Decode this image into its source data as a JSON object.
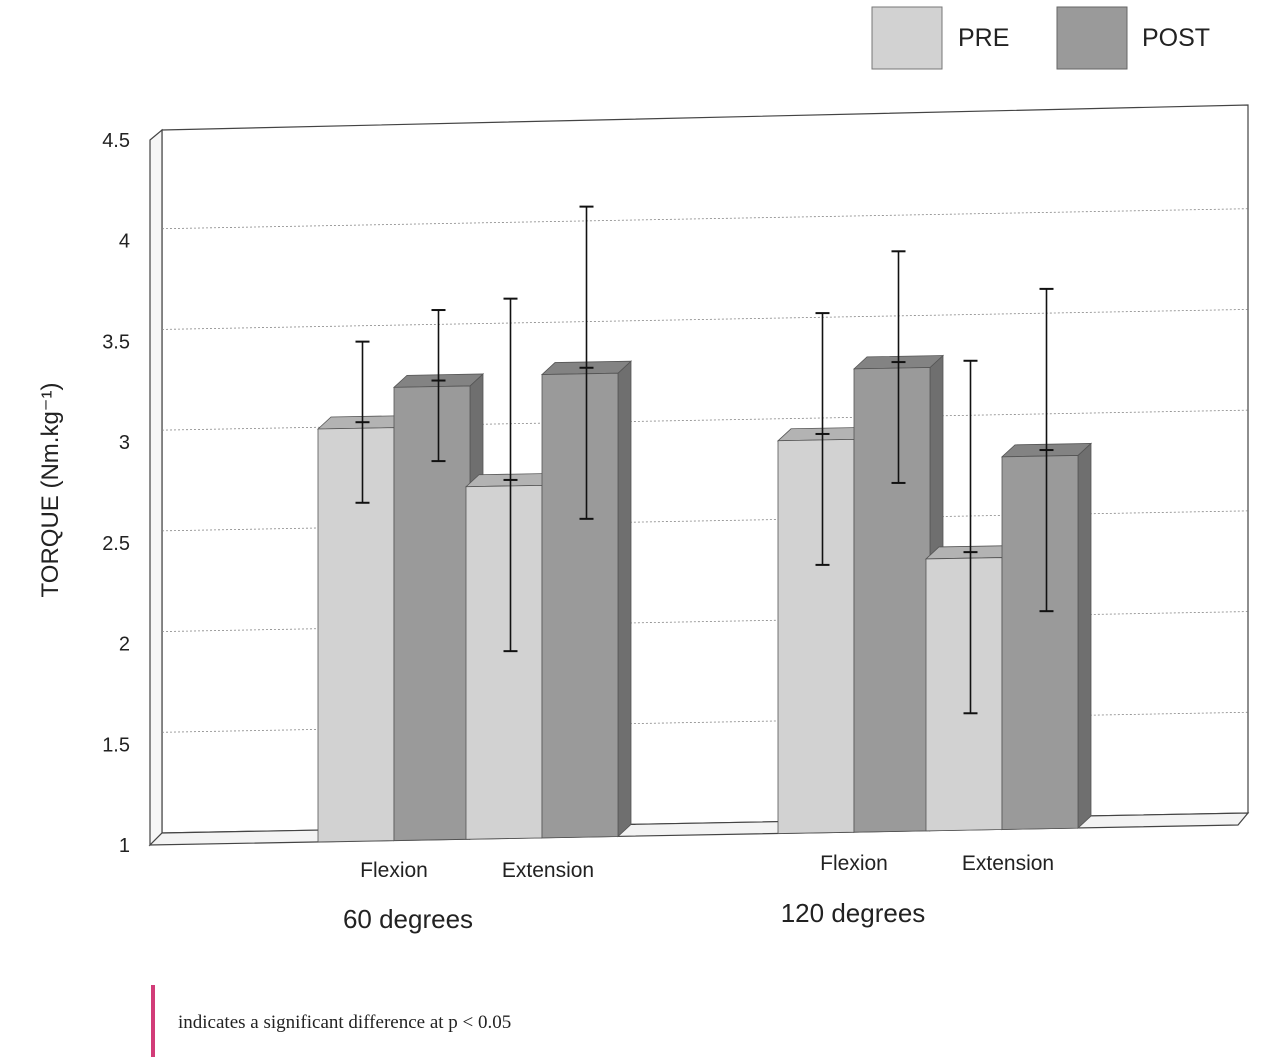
{
  "chart_data": {
    "type": "bar",
    "ylabel": "TORQUE (Nm.kg⁻¹)",
    "ylim": [
      1,
      4.5
    ],
    "yticks": [
      "1",
      "1.5",
      "2",
      "2.5",
      "3",
      "3.5",
      "4",
      "4.5"
    ],
    "grid": true,
    "legend_position": "top-right",
    "groups": [
      {
        "label": "60 degrees",
        "categories": [
          "Flexion",
          "Extension"
        ]
      },
      {
        "label": "120 degrees",
        "categories": [
          "Flexion",
          "Extension"
        ]
      }
    ],
    "series": [
      {
        "name": "PRE",
        "color": "#d2d2d2",
        "values": [
          3.05,
          2.75,
          2.95,
          2.35
        ],
        "error_low": [
          2.65,
          1.9,
          2.3,
          1.55
        ],
        "error_high": [
          3.45,
          3.65,
          3.55,
          3.3
        ]
      },
      {
        "name": "POST",
        "color": "#9a9a9a",
        "values": [
          3.25,
          3.3,
          3.3,
          2.85
        ],
        "error_low": [
          2.85,
          2.55,
          2.7,
          2.05
        ],
        "error_high": [
          3.6,
          4.1,
          3.85,
          3.65
        ]
      }
    ],
    "significance_marker_color": "#d23c78"
  },
  "note": {
    "text": "indicates a significant difference at p < 0.05"
  }
}
